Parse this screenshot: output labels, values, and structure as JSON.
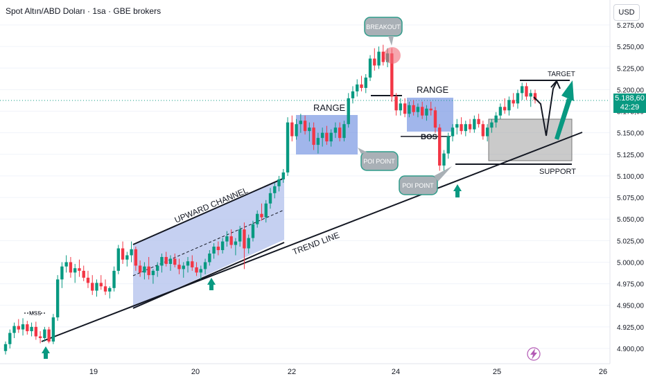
{
  "header": {
    "title": "Spot Altın/ABD Doları · 1sa · GBE brokers",
    "currency": "USD"
  },
  "current_price": {
    "value": "5.188,60",
    "countdown": "42:29"
  },
  "colors": {
    "up": "#089981",
    "down": "#f23645",
    "box": "#6f8fe0",
    "grey_box": "#9e9e9e",
    "arrow": "#089981"
  },
  "annotations": {
    "mss": "MSS",
    "upward_channel": "UPWARD CHANNEL",
    "trend_line": "TREND LINE",
    "range1": "RANGE",
    "range2": "RANGE",
    "poi1": "POI POINT",
    "poi2": "POI POINT",
    "breakout": "BREAKOUT",
    "bos": "BOS",
    "target": "TARGET",
    "support": "SUPPORT"
  },
  "chart_data": {
    "type": "candlestick",
    "yticks": [
      "5.275,00",
      "5.250,00",
      "5.225,00",
      "5.200,00",
      "5.175,00",
      "5.150,00",
      "5.125,00",
      "5.100,00",
      "5.075,00",
      "5.050,00",
      "5.025,00",
      "5.000,00",
      "4.975,00",
      "4.950,00",
      "4.925,00",
      "4.900,00"
    ],
    "xticks": [
      "19",
      "20",
      "22",
      "24",
      "25",
      "26"
    ],
    "ylim": [
      4890,
      5290
    ],
    "candles": [
      [
        4897,
        4908,
        4893,
        4905
      ],
      [
        4905,
        4922,
        4900,
        4918
      ],
      [
        4918,
        4930,
        4912,
        4926
      ],
      [
        4926,
        4934,
        4918,
        4922
      ],
      [
        4922,
        4935,
        4915,
        4928
      ],
      [
        4928,
        4932,
        4916,
        4920
      ],
      [
        4920,
        4930,
        4914,
        4925
      ],
      [
        4925,
        4931,
        4910,
        4914
      ],
      [
        4914,
        4920,
        4906,
        4912
      ],
      [
        4912,
        4925,
        4908,
        4922
      ],
      [
        4922,
        4925,
        4906,
        4908
      ],
      [
        4908,
        4940,
        4905,
        4936
      ],
      [
        4936,
        4985,
        4932,
        4980
      ],
      [
        4980,
        5000,
        4970,
        4995
      ],
      [
        4995,
        5008,
        4988,
        5000
      ],
      [
        5000,
        5006,
        4982,
        4988
      ],
      [
        4988,
        4998,
        4976,
        4993
      ],
      [
        4993,
        5003,
        4983,
        4990
      ],
      [
        4990,
        4996,
        4978,
        4982
      ],
      [
        4982,
        4990,
        4970,
        4976
      ],
      [
        4976,
        4985,
        4962,
        4967
      ],
      [
        4967,
        4980,
        4960,
        4976
      ],
      [
        4976,
        4985,
        4968,
        4972
      ],
      [
        4972,
        4980,
        4962,
        4966
      ],
      [
        4966,
        4972,
        4958,
        4970
      ],
      [
        4970,
        4995,
        4966,
        4990
      ],
      [
        4990,
        5020,
        4986,
        5016
      ],
      [
        5016,
        5024,
        4998,
        5003
      ],
      [
        5003,
        5012,
        4995,
        5008
      ],
      [
        5008,
        5024,
        5000,
        5015
      ],
      [
        5015,
        5018,
        4990,
        4996
      ],
      [
        4996,
        5002,
        4983,
        4988
      ],
      [
        4988,
        5000,
        4980,
        4995
      ],
      [
        4995,
        5006,
        4980,
        4985
      ],
      [
        4985,
        4992,
        4975,
        4990
      ],
      [
        4990,
        5000,
        4983,
        4996
      ],
      [
        4996,
        5010,
        4988,
        5006
      ],
      [
        5006,
        5012,
        4995,
        4998
      ],
      [
        4998,
        5008,
        4990,
        5004
      ],
      [
        5004,
        5010,
        4994,
        4997
      ],
      [
        4997,
        5004,
        4986,
        4992
      ],
      [
        4992,
        5000,
        4982,
        4996
      ],
      [
        4996,
        5006,
        4988,
        5001
      ],
      [
        5001,
        5008,
        4990,
        4994
      ],
      [
        4994,
        5000,
        4984,
        4988
      ],
      [
        4988,
        4996,
        4980,
        4992
      ],
      [
        4992,
        5004,
        4986,
        5000
      ],
      [
        5000,
        5014,
        4996,
        5010
      ],
      [
        5010,
        5022,
        5004,
        5018
      ],
      [
        5018,
        5024,
        5008,
        5014
      ],
      [
        5014,
        5028,
        5010,
        5024
      ],
      [
        5024,
        5036,
        5018,
        5030
      ],
      [
        5030,
        5038,
        5016,
        5020
      ],
      [
        5020,
        5028,
        5008,
        5024
      ],
      [
        5024,
        5042,
        5018,
        5038
      ],
      [
        5038,
        5046,
        4992,
        5016
      ],
      [
        5016,
        5032,
        5010,
        5028
      ],
      [
        5028,
        5048,
        5024,
        5044
      ],
      [
        5044,
        5060,
        5040,
        5056
      ],
      [
        5056,
        5068,
        5048,
        5052
      ],
      [
        5052,
        5072,
        5046,
        5068
      ],
      [
        5068,
        5086,
        5062,
        5080
      ],
      [
        5080,
        5092,
        5074,
        5088
      ],
      [
        5088,
        5100,
        5082,
        5096
      ],
      [
        5096,
        5108,
        5092,
        5104
      ],
      [
        5104,
        5168,
        5100,
        5162
      ],
      [
        5162,
        5170,
        5140,
        5146
      ],
      [
        5146,
        5166,
        5142,
        5160
      ],
      [
        5160,
        5172,
        5150,
        5164
      ],
      [
        5164,
        5170,
        5148,
        5152
      ],
      [
        5152,
        5162,
        5140,
        5156
      ],
      [
        5156,
        5162,
        5130,
        5136
      ],
      [
        5136,
        5150,
        5126,
        5144
      ],
      [
        5144,
        5156,
        5134,
        5150
      ],
      [
        5150,
        5158,
        5136,
        5140
      ],
      [
        5140,
        5154,
        5134,
        5150
      ],
      [
        5150,
        5162,
        5144,
        5156
      ],
      [
        5156,
        5162,
        5140,
        5144
      ],
      [
        5144,
        5164,
        5140,
        5160
      ],
      [
        5160,
        5196,
        5156,
        5190
      ],
      [
        5190,
        5204,
        5184,
        5198
      ],
      [
        5198,
        5212,
        5192,
        5206
      ],
      [
        5206,
        5216,
        5198,
        5202
      ],
      [
        5202,
        5218,
        5196,
        5214
      ],
      [
        5214,
        5240,
        5210,
        5236
      ],
      [
        5236,
        5248,
        5222,
        5228
      ],
      [
        5228,
        5250,
        5224,
        5244
      ],
      [
        5244,
        5252,
        5228,
        5232
      ],
      [
        5232,
        5248,
        5226,
        5242
      ],
      [
        5242,
        5248,
        5186,
        5192
      ],
      [
        5192,
        5196,
        5170,
        5176
      ],
      [
        5176,
        5190,
        5170,
        5184
      ],
      [
        5184,
        5190,
        5168,
        5172
      ],
      [
        5172,
        5186,
        5168,
        5182
      ],
      [
        5182,
        5188,
        5170,
        5174
      ],
      [
        5174,
        5184,
        5168,
        5180
      ],
      [
        5180,
        5186,
        5166,
        5170
      ],
      [
        5170,
        5182,
        5164,
        5178
      ],
      [
        5178,
        5186,
        5170,
        5176
      ],
      [
        5176,
        5180,
        5150,
        5156
      ],
      [
        5156,
        5160,
        5106,
        5112
      ],
      [
        5112,
        5130,
        5106,
        5126
      ],
      [
        5126,
        5150,
        5120,
        5146
      ],
      [
        5146,
        5160,
        5140,
        5156
      ],
      [
        5156,
        5166,
        5148,
        5160
      ],
      [
        5160,
        5168,
        5148,
        5152
      ],
      [
        5152,
        5164,
        5146,
        5160
      ],
      [
        5160,
        5166,
        5150,
        5154
      ],
      [
        5154,
        5170,
        5150,
        5166
      ],
      [
        5166,
        5172,
        5156,
        5160
      ],
      [
        5160,
        5164,
        5142,
        5146
      ],
      [
        5146,
        5160,
        5140,
        5156
      ],
      [
        5156,
        5166,
        5150,
        5162
      ],
      [
        5162,
        5174,
        5156,
        5170
      ],
      [
        5170,
        5184,
        5166,
        5180
      ],
      [
        5180,
        5190,
        5172,
        5176
      ],
      [
        5176,
        5192,
        5170,
        5188
      ],
      [
        5188,
        5196,
        5180,
        5184
      ],
      [
        5184,
        5200,
        5178,
        5196
      ],
      [
        5196,
        5208,
        5188,
        5204
      ],
      [
        5204,
        5208,
        5188,
        5192
      ],
      [
        5192,
        5200,
        5180,
        5196
      ],
      [
        5196,
        5200,
        5184,
        5188
      ]
    ]
  }
}
